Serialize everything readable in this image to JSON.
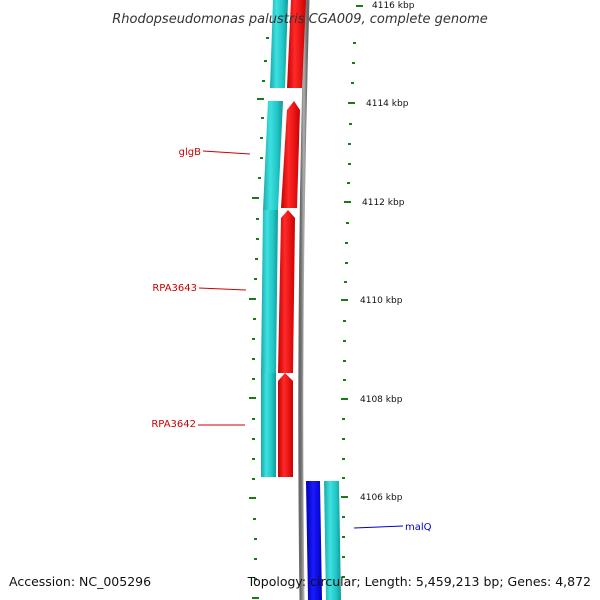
{
  "title": "Rhodopseudomonas palustris CGA009, complete genome",
  "accession": "Accession: NC_005296",
  "topology": "Topology: circular; Length: 5,459,213 bp; Genes: 4,872",
  "scale": {
    "labels": [
      {
        "label": "4116 kbp",
        "kbp": 4116
      },
      {
        "label": "4114 kbp",
        "kbp": 4114
      },
      {
        "label": "4112 kbp",
        "kbp": 4112
      },
      {
        "label": "4110 kbp",
        "kbp": 4110
      },
      {
        "label": "4108 kbp",
        "kbp": 4108
      },
      {
        "label": "4106 kbp",
        "kbp": 4106
      }
    ]
  },
  "gene_labels": [
    {
      "name": "glgB",
      "strand": "reverse",
      "color": "#cc0000"
    },
    {
      "name": "RPA3643",
      "strand": "reverse",
      "color": "#cc0000"
    },
    {
      "name": "RPA3642",
      "strand": "reverse",
      "color": "#cc0000"
    },
    {
      "name": "malQ",
      "strand": "forward",
      "color": "#0000cc"
    }
  ],
  "colors": {
    "cds_reverse": "#ff0000",
    "gene_reverse": "#22c7c7",
    "cds_forward": "#0000ff",
    "gene_forward": "#22c7c7",
    "backbone": "#888888",
    "ticks": "#1a7a1a"
  }
}
